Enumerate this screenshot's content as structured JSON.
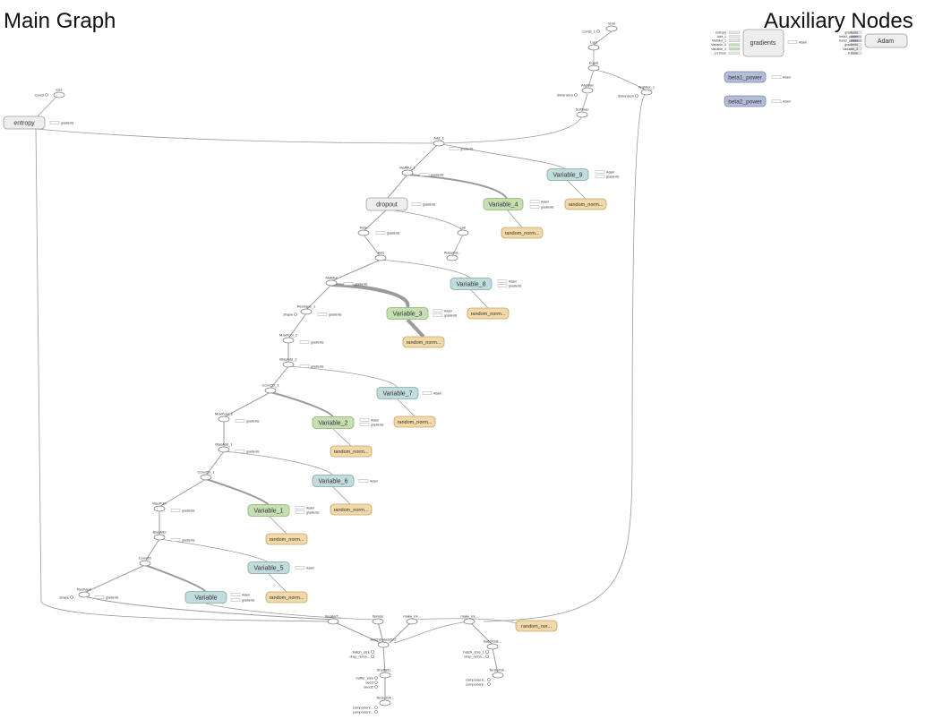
{
  "headings": {
    "main_graph": "Main Graph",
    "auxiliary_nodes": "Auxiliary Nodes"
  },
  "colors": {
    "variable_green": "#c5dfb3",
    "variable_green_border": "#8cb56e",
    "variable_blue": "#c1dcdc",
    "variable_blue_border": "#86a8a8",
    "init_tan": "#f1d9a8",
    "init_tan_border": "#c7a468",
    "group_gray": "#eeeeee",
    "group_gray_border": "#9e9e9e",
    "aux_purple": "#b4bcd8",
    "aux_purple_border": "#7b86ad",
    "edge": "#9b9b9b"
  },
  "nodes": {
    "entropy": "entropy",
    "loss": "loss",
    "const_loss": "Const",
    "sum": "Sum",
    "const_sum": "Const_1",
    "cast": "Cast",
    "equal": "Equal",
    "argmax": "ArgMax",
    "argmax_1": "ArgMax_1",
    "dimension_a": "dimension",
    "dimension_b": "dimension",
    "softmax": "Softmax",
    "add_1": "Add_1",
    "matmul_1": "MatMul_1",
    "variable_9": "Variable_9",
    "variable_4": "Variable_4",
    "dropout": "dropout",
    "relu": "Relu",
    "sub": "sub",
    "placeholder": "Placehol...",
    "add": "Add",
    "matmul": "MatMul",
    "variable_8": "Variable_8",
    "variable_3": "Variable_3",
    "reshape_1": "Reshape_1",
    "shape_1": "shape",
    "maxpool_2": "MaxPool_2",
    "biasadd_2": "BiasAdd_2",
    "conv2d_2": "Conv2D_2",
    "variable_7": "Variable_7",
    "maxpool_1": "MaxPool_1",
    "variable_2": "Variable_2",
    "biasadd_1": "BiasAdd_1",
    "conv2d_1": "Conv2D_1",
    "variable_6": "Variable_6",
    "maxpool": "MaxPool",
    "variable_1": "Variable_1",
    "biasadd": "BiasAdd",
    "conv2d": "Conv2D",
    "variable_5": "Variable_5",
    "reshape": "Reshape",
    "shape_0": "shape",
    "variable": "Variable",
    "iteratorT": "IteratorT...",
    "iterator": "Iterator",
    "make_ini_1": "make_ini...",
    "make_ini_2": "make_ini...",
    "batchdataset": "BatchDatasetV2",
    "batchdat": "BatchDat...",
    "shuffle": "ShuffleD...",
    "tensorsl_1": "TensorSli...",
    "tensorsl_2": "TensorSli...",
    "batch_size_1": "batch_size",
    "drop_rema_1": "drop_rema...",
    "batch_size_2": "batch_size_1",
    "drop_rema_2": "drop_rema...",
    "buffer_size": "buffer_size",
    "seed": "seed",
    "seed2": "seed2",
    "component_1": "component...",
    "component_2": "component...",
    "component_3": "component...",
    "component_4": "component...",
    "rn_v9": "random_norm...",
    "rn_v4": "random_norm...",
    "rn_v8": "random_norm...",
    "rn_v3": "random_norm...",
    "rn_v7": "random_norm...",
    "rn_v2": "random_norm...",
    "rn_v6": "random_norm...",
    "rn_v1": "random_norm...",
    "rn_v0": "random_norm...",
    "rn_nor": "random_nor...",
    "gradients_aux": "gradients",
    "adam_aux": "Adam",
    "beta1_power": "beta1_power",
    "beta2_power": "beta2_power"
  },
  "edge_labels": {
    "gradients": "gradients",
    "adam": "Adam"
  },
  "gradients_inputs": [
    "entropy",
    "Add_1",
    "MatMul_1",
    "Variable_3",
    "Variable_4",
    "... 10 more"
  ],
  "adam_inputs": [
    "gradients",
    "beta1_power",
    "beta2_power",
    "gradients",
    "Variable_3",
    "... 8 more"
  ]
}
